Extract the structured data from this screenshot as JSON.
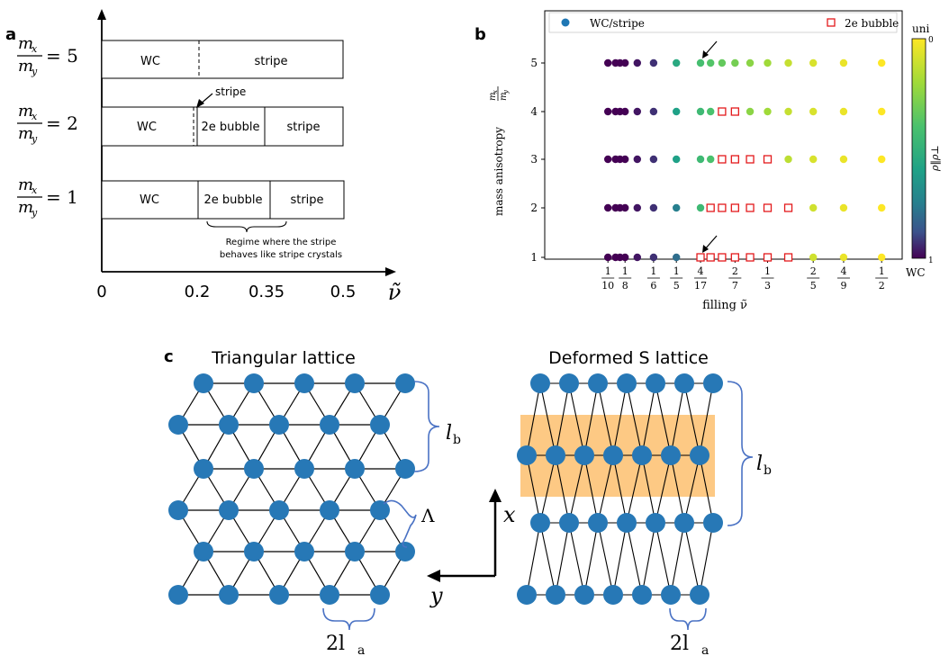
{
  "panel_a": {
    "label": "a",
    "rows": [
      {
        "ratio_num": "m",
        "ratio_num_sub": "x",
        "ratio_den": "m",
        "ratio_den_sub": "y",
        "value": "= 5",
        "segments": [
          "WC",
          "stripe"
        ]
      },
      {
        "ratio_num": "m",
        "ratio_num_sub": "x",
        "ratio_den": "m",
        "ratio_den_sub": "y",
        "value": "= 2",
        "segments": [
          "WC",
          "2e bubble",
          "stripe"
        ]
      },
      {
        "ratio_num": "m",
        "ratio_num_sub": "x",
        "ratio_den": "m",
        "ratio_den_sub": "y",
        "value": "= 1",
        "segments": [
          "WC",
          "2e bubble",
          "stripe"
        ]
      }
    ],
    "stripe_annotation": "stripe",
    "regime_note_line1": "Regime where the stripe",
    "regime_note_line2": "behaves like stripe crystals",
    "x_ticks": [
      "0",
      "0.2",
      "0.35",
      "0.5"
    ],
    "x_axis_symbol": "ν̃"
  },
  "panel_b": {
    "label": "b",
    "legend": {
      "wc": "WC/stripe",
      "bubble": "2e bubble"
    },
    "ylabel": "mass anisotropy",
    "ylabel_frac_num": "m",
    "ylabel_frac_num_sub": "x",
    "ylabel_frac_den": "m",
    "ylabel_frac_den_sub": "y",
    "xlabel": "filling ν̃",
    "colorbar_top": "uni",
    "colorbar_bottom": "WC",
    "colorbar_tick_top": "0",
    "colorbar_tick_bottom": "1",
    "colorbar_label": "ρ‖ρ⊥",
    "colors": {
      "low": "#440154",
      "mid": "#21908d",
      "high": "#fde725",
      "bubble": "#e31a1c"
    }
  },
  "chart_data": {
    "type": "scatter",
    "xlabel": "filling ν̃",
    "ylabel": "mass anisotropy m_x/m_y",
    "ylim": [
      1,
      5
    ],
    "x_tick_labels": [
      {
        "num": "1",
        "den": "10",
        "value": 0.1
      },
      {
        "num": "1",
        "den": "8",
        "value": 0.125
      },
      {
        "num": "1",
        "den": "6",
        "value": 0.1667
      },
      {
        "num": "1",
        "den": "5",
        "value": 0.2
      },
      {
        "num": "4",
        "den": "17",
        "value": 0.2353
      },
      {
        "num": "2",
        "den": "7",
        "value": 0.2857
      },
      {
        "num": "1",
        "den": "3",
        "value": 0.3333
      },
      {
        "num": "2",
        "den": "5",
        "value": 0.4
      },
      {
        "num": "4",
        "den": "9",
        "value": 0.4444
      },
      {
        "num": "1",
        "den": "2",
        "value": 0.5
      }
    ],
    "y_ticks": [
      "1",
      "2",
      "3",
      "4",
      "5"
    ],
    "x_values": [
      0.1,
      0.1111,
      0.1176,
      0.125,
      0.1429,
      0.1667,
      0.2,
      0.2353,
      0.25,
      0.2667,
      0.2857,
      0.3077,
      0.3333,
      0.3636,
      0.4,
      0.4444,
      0.5
    ],
    "series": [
      {
        "name": "WC/stripe",
        "y": 5,
        "bubble": [
          false,
          false,
          false,
          false,
          false,
          false,
          false,
          false,
          false,
          false,
          false,
          false,
          false,
          false,
          false,
          false,
          false
        ],
        "shade": [
          1.0,
          1.0,
          1.0,
          1.0,
          0.97,
          0.93,
          0.55,
          0.42,
          0.38,
          0.34,
          0.3,
          0.25,
          0.2,
          0.12,
          0.08,
          0.04,
          0.0
        ]
      },
      {
        "name": "WC/stripe",
        "y": 4,
        "bubble": [
          false,
          false,
          false,
          false,
          false,
          false,
          false,
          false,
          false,
          true,
          true,
          false,
          false,
          false,
          false,
          false,
          false
        ],
        "shade": [
          1.0,
          1.0,
          1.0,
          1.0,
          0.97,
          0.93,
          0.6,
          0.45,
          0.4,
          0.3,
          0.3,
          0.25,
          0.2,
          0.12,
          0.08,
          0.04,
          0.0
        ]
      },
      {
        "name": "WC/stripe",
        "y": 3,
        "bubble": [
          false,
          false,
          false,
          false,
          false,
          false,
          false,
          false,
          false,
          true,
          true,
          true,
          true,
          false,
          false,
          false,
          false
        ],
        "shade": [
          1.0,
          1.0,
          1.0,
          1.0,
          0.97,
          0.93,
          0.6,
          0.45,
          0.4,
          0.3,
          0.3,
          0.3,
          0.3,
          0.14,
          0.08,
          0.04,
          0.0
        ]
      },
      {
        "name": "WC/stripe",
        "y": 2,
        "bubble": [
          false,
          false,
          false,
          false,
          false,
          false,
          false,
          false,
          true,
          true,
          true,
          true,
          true,
          true,
          false,
          false,
          false
        ],
        "shade": [
          1.0,
          1.0,
          1.0,
          1.0,
          0.97,
          0.93,
          0.75,
          0.45,
          0.4,
          0.3,
          0.3,
          0.3,
          0.3,
          0.3,
          0.1,
          0.04,
          0.0
        ]
      },
      {
        "name": "WC/stripe",
        "y": 1,
        "bubble": [
          false,
          false,
          false,
          false,
          false,
          false,
          false,
          true,
          true,
          true,
          true,
          true,
          true,
          true,
          false,
          false,
          false
        ],
        "shade": [
          1.0,
          1.0,
          1.0,
          1.0,
          0.97,
          0.93,
          0.8,
          0.5,
          0.4,
          0.3,
          0.3,
          0.3,
          0.3,
          0.3,
          0.1,
          0.04,
          0.0
        ]
      }
    ],
    "arrow_points": [
      {
        "x": 0.2353,
        "y": 5
      },
      {
        "x": 0.2353,
        "y": 1
      }
    ]
  },
  "panel_c": {
    "label": "c",
    "left_title": "Triangular lattice",
    "right_title": "Deformed S lattice",
    "lb": "l",
    "lb_sub": "b",
    "lambda": "Λ",
    "la_prefix": "2l",
    "la_sub": "a",
    "axis_x": "x",
    "axis_y": "y",
    "colors": {
      "atom": "#2778b6",
      "band": "#fdbf6f",
      "brace": "#4a72c4"
    }
  }
}
